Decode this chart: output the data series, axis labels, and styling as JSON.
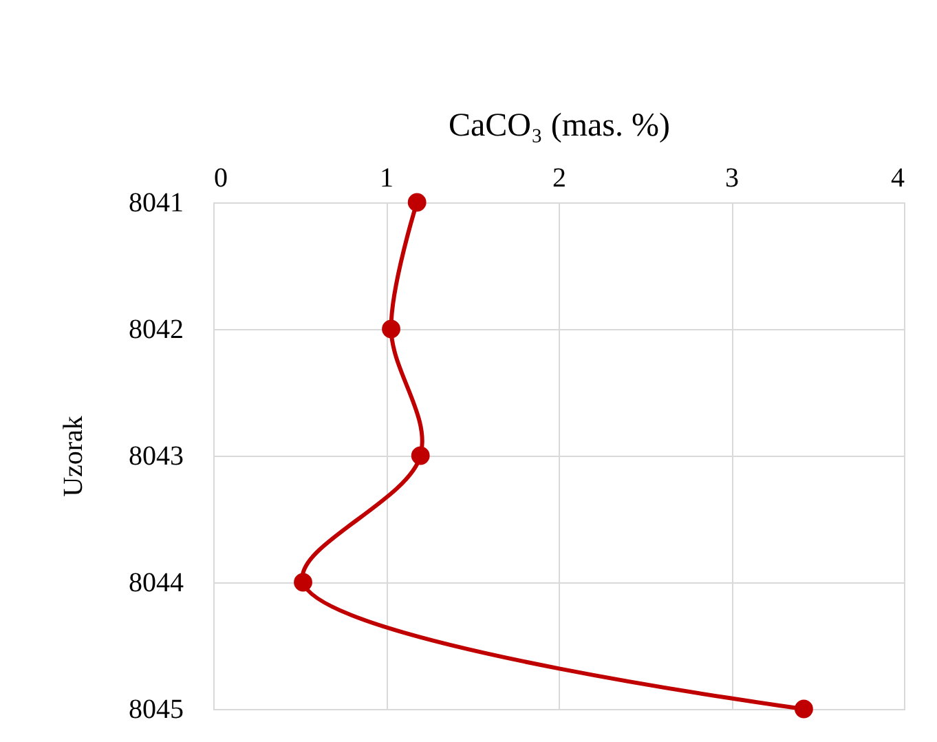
{
  "chart_data": {
    "type": "line",
    "orientation": "horizontal",
    "xlabel": "CaCO₃ (mas. %)",
    "ylabel": "Uzorak",
    "categories": [
      "8041",
      "8042",
      "8043",
      "8044",
      "8045"
    ],
    "series": [
      {
        "color": "#c00000",
        "values": [
          1.18,
          1.03,
          1.2,
          0.52,
          3.42
        ]
      }
    ],
    "xlim": [
      0,
      4
    ],
    "xticks": [
      0,
      1,
      2,
      3,
      4
    ],
    "grid": true,
    "marker": "circle",
    "line_style": "solid"
  }
}
